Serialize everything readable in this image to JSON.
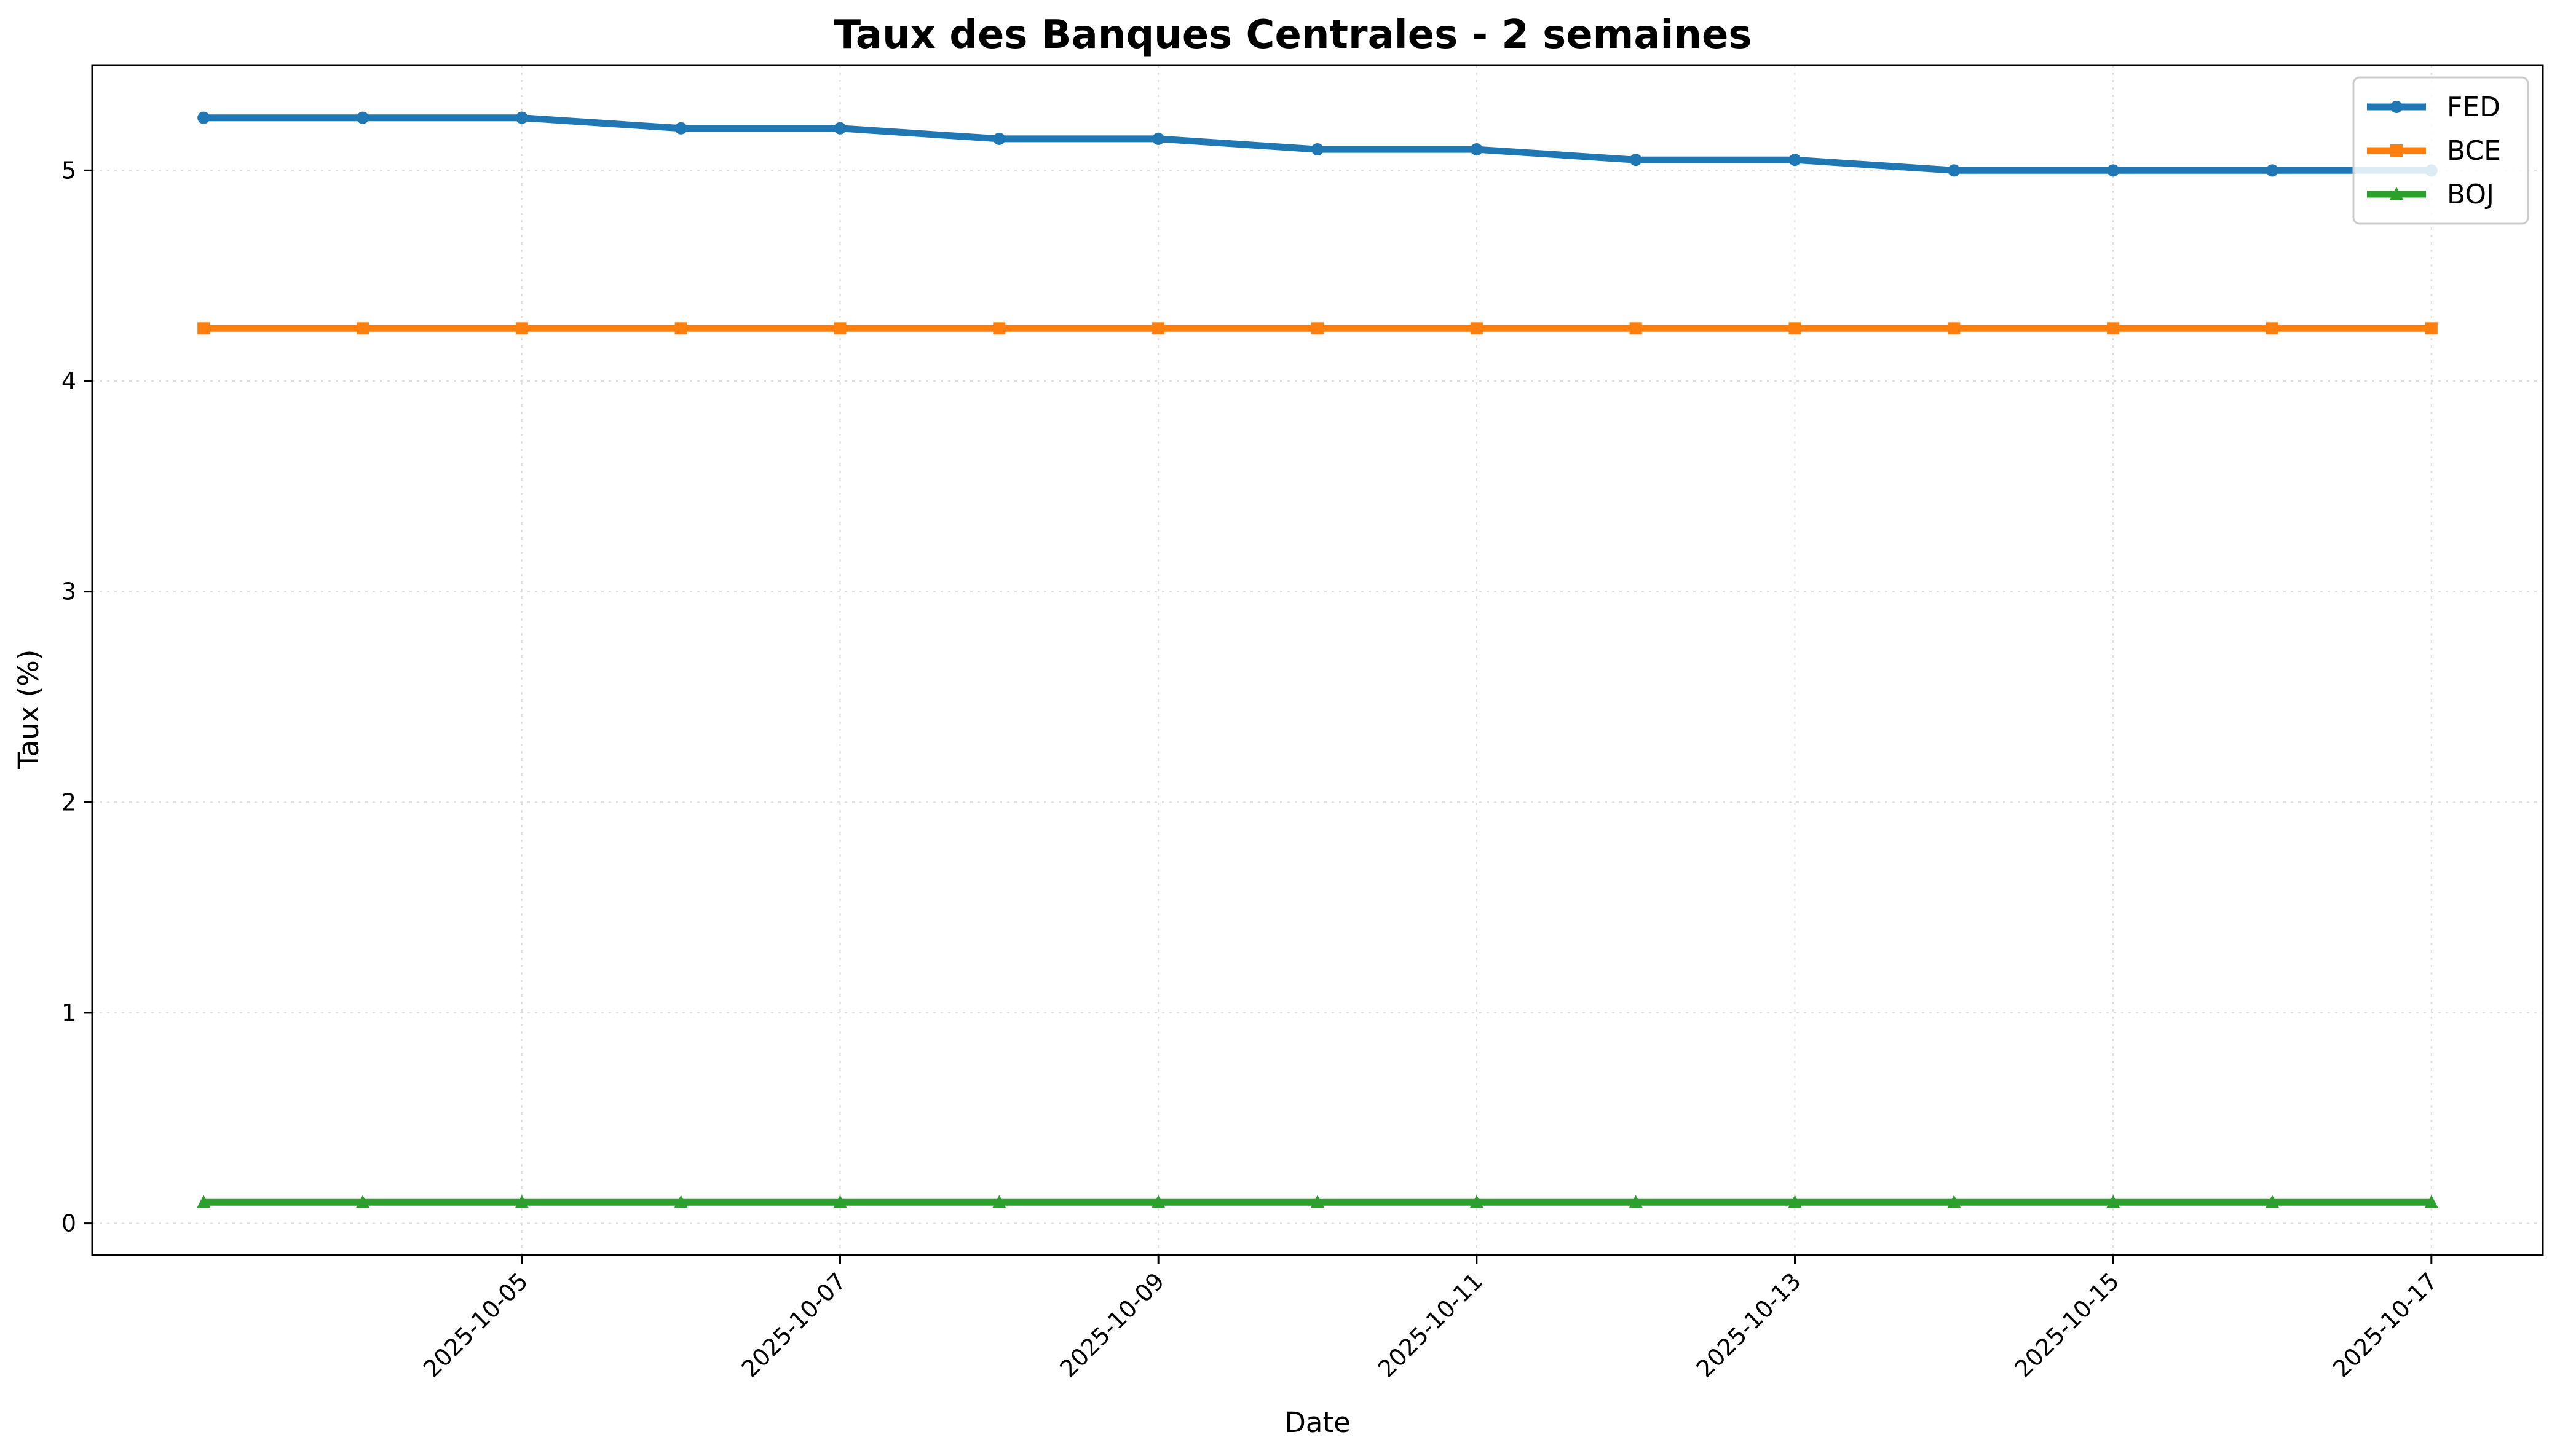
{
  "chart_data": {
    "type": "line",
    "title": "Taux des Banques Centrales - 2 semaines",
    "xlabel": "Date",
    "ylabel": "Taux (%)",
    "x": [
      "2025-10-03",
      "2025-10-04",
      "2025-10-05",
      "2025-10-06",
      "2025-10-07",
      "2025-10-08",
      "2025-10-09",
      "2025-10-10",
      "2025-10-11",
      "2025-10-12",
      "2025-10-13",
      "2025-10-14",
      "2025-10-15",
      "2025-10-16",
      "2025-10-17"
    ],
    "x_ticks": [
      "2025-10-05",
      "2025-10-07",
      "2025-10-09",
      "2025-10-11",
      "2025-10-13",
      "2025-10-15",
      "2025-10-17"
    ],
    "y_ticks": [
      0,
      1,
      2,
      3,
      4,
      5
    ],
    "ylim": [
      -0.15,
      5.5
    ],
    "grid": true,
    "legend_position": "top-right",
    "series": [
      {
        "name": "FED",
        "color": "#1f77b4",
        "marker": "circle",
        "values": [
          5.25,
          5.25,
          5.25,
          5.2,
          5.2,
          5.15,
          5.15,
          5.1,
          5.1,
          5.05,
          5.05,
          5.0,
          5.0,
          5.0,
          5.0
        ]
      },
      {
        "name": "BCE",
        "color": "#ff7f0e",
        "marker": "square",
        "values": [
          4.25,
          4.25,
          4.25,
          4.25,
          4.25,
          4.25,
          4.25,
          4.25,
          4.25,
          4.25,
          4.25,
          4.25,
          4.25,
          4.25,
          4.25
        ]
      },
      {
        "name": "BOJ",
        "color": "#2ca02c",
        "marker": "triangle",
        "values": [
          0.1,
          0.1,
          0.1,
          0.1,
          0.1,
          0.1,
          0.1,
          0.1,
          0.1,
          0.1,
          0.1,
          0.1,
          0.1,
          0.1,
          0.1
        ]
      }
    ]
  }
}
